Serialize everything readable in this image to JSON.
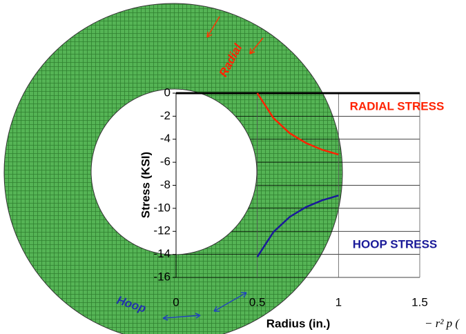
{
  "chart_data": {
    "type": "line",
    "x": [
      0.5,
      0.6,
      0.7,
      0.8,
      0.9,
      1.0
    ],
    "series": [
      {
        "name": "RADIAL STRESS",
        "color": "#ff2200",
        "values": [
          0,
          -2.17,
          -3.48,
          -4.33,
          -4.92,
          -5.33
        ]
      },
      {
        "name": "HOOP STRESS",
        "color": "#1a1a99",
        "values": [
          -14.22,
          -12.05,
          -10.74,
          -9.89,
          -9.3,
          -8.89
        ]
      }
    ],
    "xlabel": "Radius  (in.)",
    "ylabel": "Stress  (KSI)",
    "xlim": [
      0,
      1.5
    ],
    "xticks": [
      0,
      0.5,
      1,
      1.5
    ],
    "ylim": [
      -16,
      0
    ],
    "yticks": [
      0,
      -2,
      -4,
      -6,
      -8,
      -10,
      -12,
      -14,
      -16
    ],
    "grid": true,
    "annotations": [
      "Radial",
      "Hoop",
      "− r² p  ("
    ]
  }
}
